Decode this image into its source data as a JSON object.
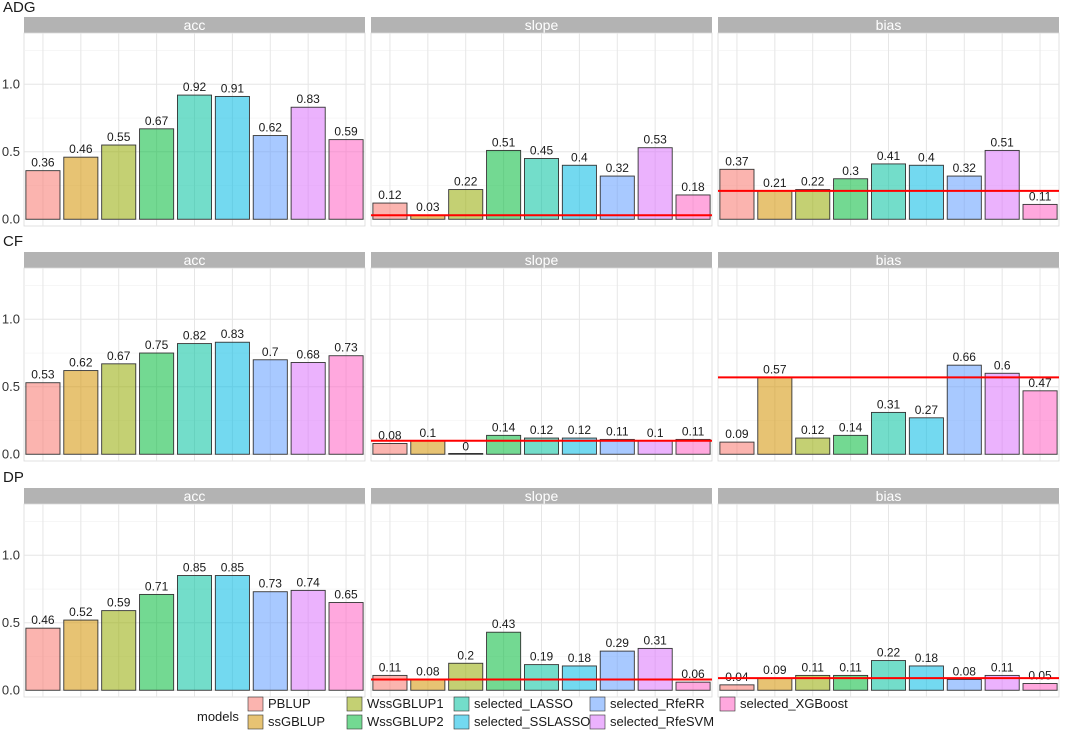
{
  "chart_data": {
    "type": "bar",
    "facet_rows": [
      "ADG",
      "CF",
      "DP"
    ],
    "facet_cols": [
      "acc",
      "slope",
      "bias"
    ],
    "ylim": [
      -0.05,
      1.38
    ],
    "yticks": [
      "0.0",
      "0.5",
      "1.0"
    ],
    "ytick_values": [
      0.0,
      0.5,
      1.0
    ],
    "grid": true,
    "reference_line_color": "#ff0000",
    "models": [
      {
        "name": "PBLUP",
        "color": "#f8766d"
      },
      {
        "name": "ssGBLUP",
        "color": "#d39200"
      },
      {
        "name": "WssGBLUP1",
        "color": "#93aa00"
      },
      {
        "name": "WssGBLUP2",
        "color": "#00ba38"
      },
      {
        "name": "selected_LASSO",
        "color": "#00c19f"
      },
      {
        "name": "selected_SSLASSO",
        "color": "#00b9e3"
      },
      {
        "name": "selected_RfeRR",
        "color": "#619cff"
      },
      {
        "name": "selected_RfeSVM",
        "color": "#db72fb"
      },
      {
        "name": "selected_XGBoost",
        "color": "#ff61c3"
      }
    ],
    "panels": [
      {
        "row": "ADG",
        "col": "acc",
        "values": [
          0.36,
          0.46,
          0.55,
          0.67,
          0.92,
          0.91,
          0.62,
          0.83,
          0.59
        ],
        "labels": [
          "0.36",
          "0.46",
          "0.55",
          "0.67",
          "0.92",
          "0.91",
          "0.62",
          "0.83",
          "0.59"
        ],
        "ref_line": null
      },
      {
        "row": "ADG",
        "col": "slope",
        "values": [
          0.12,
          0.03,
          0.22,
          0.51,
          0.45,
          0.4,
          0.32,
          0.53,
          0.18
        ],
        "labels": [
          "0.12",
          "0.03",
          "0.22",
          "0.51",
          "0.45",
          "0.4",
          "0.32",
          "0.53",
          "0.18"
        ],
        "ref_line": 0.03
      },
      {
        "row": "ADG",
        "col": "bias",
        "values": [
          0.37,
          0.21,
          0.22,
          0.3,
          0.41,
          0.4,
          0.32,
          0.51,
          0.11
        ],
        "labels": [
          "0.37",
          "0.21",
          "0.22",
          "0.3",
          "0.41",
          "0.4",
          "0.32",
          "0.51",
          "0.11"
        ],
        "ref_line": 0.21
      },
      {
        "row": "CF",
        "col": "acc",
        "values": [
          0.53,
          0.62,
          0.67,
          0.75,
          0.82,
          0.83,
          0.7,
          0.68,
          0.73
        ],
        "labels": [
          "0.53",
          "0.62",
          "0.67",
          "0.75",
          "0.82",
          "0.83",
          "0.7",
          "0.68",
          "0.73"
        ],
        "ref_line": null
      },
      {
        "row": "CF",
        "col": "slope",
        "values": [
          0.08,
          0.1,
          0.0,
          0.14,
          0.12,
          0.12,
          0.11,
          0.1,
          0.11
        ],
        "labels": [
          "0.08",
          "0.1",
          "0",
          "0.14",
          "0.12",
          "0.12",
          "0.11",
          "0.1",
          "0.11"
        ],
        "ref_line": 0.1
      },
      {
        "row": "CF",
        "col": "bias",
        "values": [
          0.09,
          0.57,
          0.12,
          0.14,
          0.31,
          0.27,
          0.66,
          0.6,
          0.47
        ],
        "labels": [
          "0.09",
          "0.57",
          "0.12",
          "0.14",
          "0.31",
          "0.27",
          "0.66",
          "0.6",
          "0.47"
        ],
        "ref_line": 0.57
      },
      {
        "row": "DP",
        "col": "acc",
        "values": [
          0.46,
          0.52,
          0.59,
          0.71,
          0.85,
          0.85,
          0.73,
          0.74,
          0.65
        ],
        "labels": [
          "0.46",
          "0.52",
          "0.59",
          "0.71",
          "0.85",
          "0.85",
          "0.73",
          "0.74",
          "0.65"
        ],
        "ref_line": null
      },
      {
        "row": "DP",
        "col": "slope",
        "values": [
          0.11,
          0.08,
          0.2,
          0.43,
          0.19,
          0.18,
          0.29,
          0.31,
          0.06
        ],
        "labels": [
          "0.11",
          "0.08",
          "0.2",
          "0.43",
          "0.19",
          "0.18",
          "0.29",
          "0.31",
          "0.06"
        ],
        "ref_line": 0.08
      },
      {
        "row": "DP",
        "col": "bias",
        "values": [
          0.04,
          0.09,
          0.11,
          0.11,
          0.22,
          0.18,
          0.08,
          0.11,
          0.05
        ],
        "labels": [
          "0.04",
          "0.09",
          "0.11",
          "0.11",
          "0.22",
          "0.18",
          "0.08",
          "0.11",
          "0.05"
        ],
        "ref_line": 0.09
      }
    ],
    "legend": {
      "title": "models",
      "position": "bottom"
    }
  }
}
